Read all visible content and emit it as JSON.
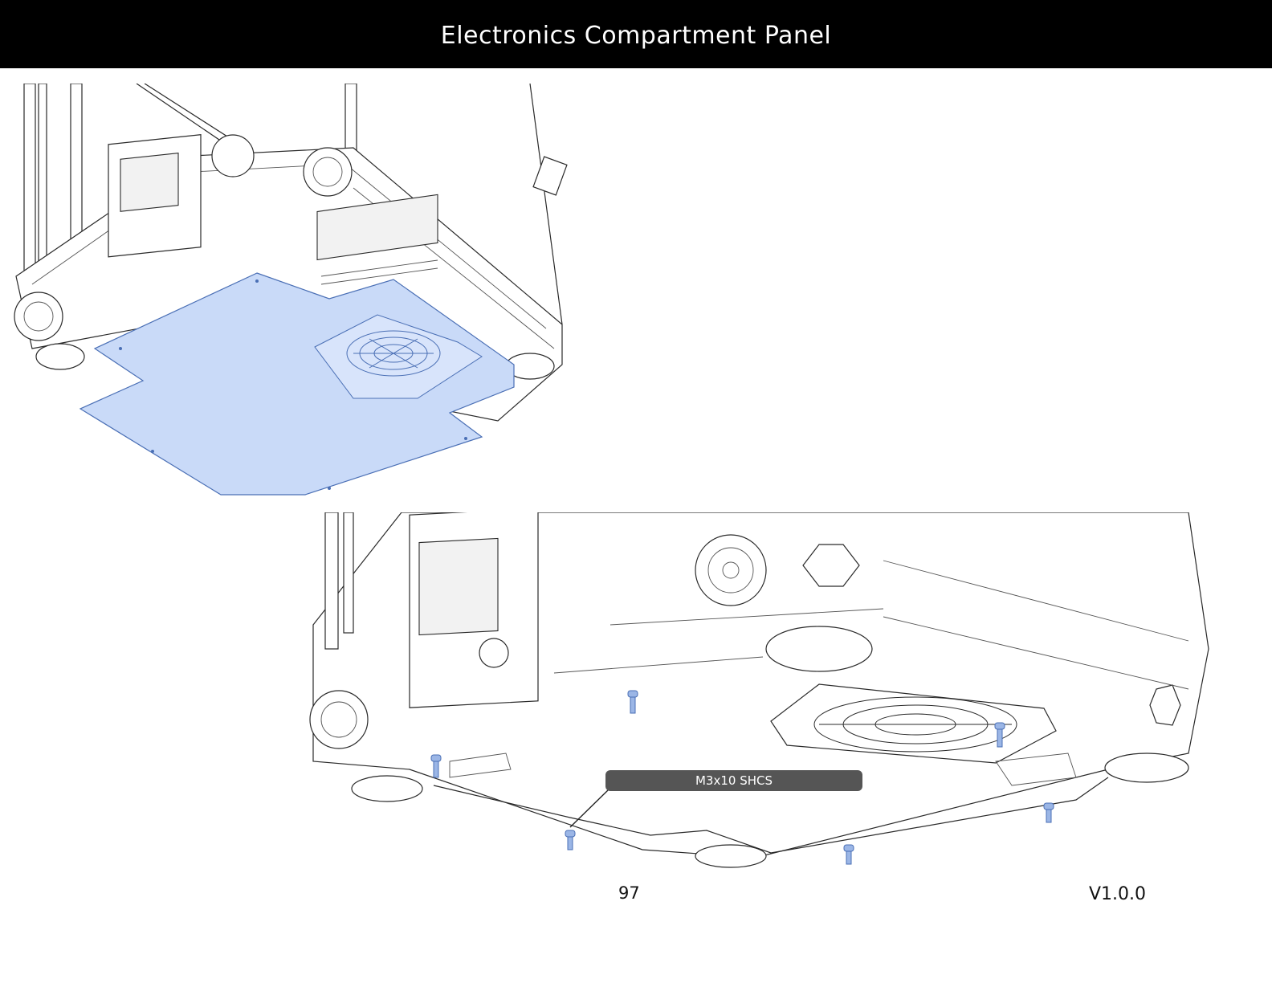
{
  "header": {
    "title": "Electronics Compartment Panel"
  },
  "callout": {
    "label": "M3x10 SHCS"
  },
  "footer": {
    "page_number": "97",
    "version": "V1.0.0"
  },
  "colors": {
    "header_bg": "#000000",
    "panel_highlight": "#c9daf8",
    "screw_highlight": "#9bb6e6",
    "callout_bg": "#555555"
  }
}
